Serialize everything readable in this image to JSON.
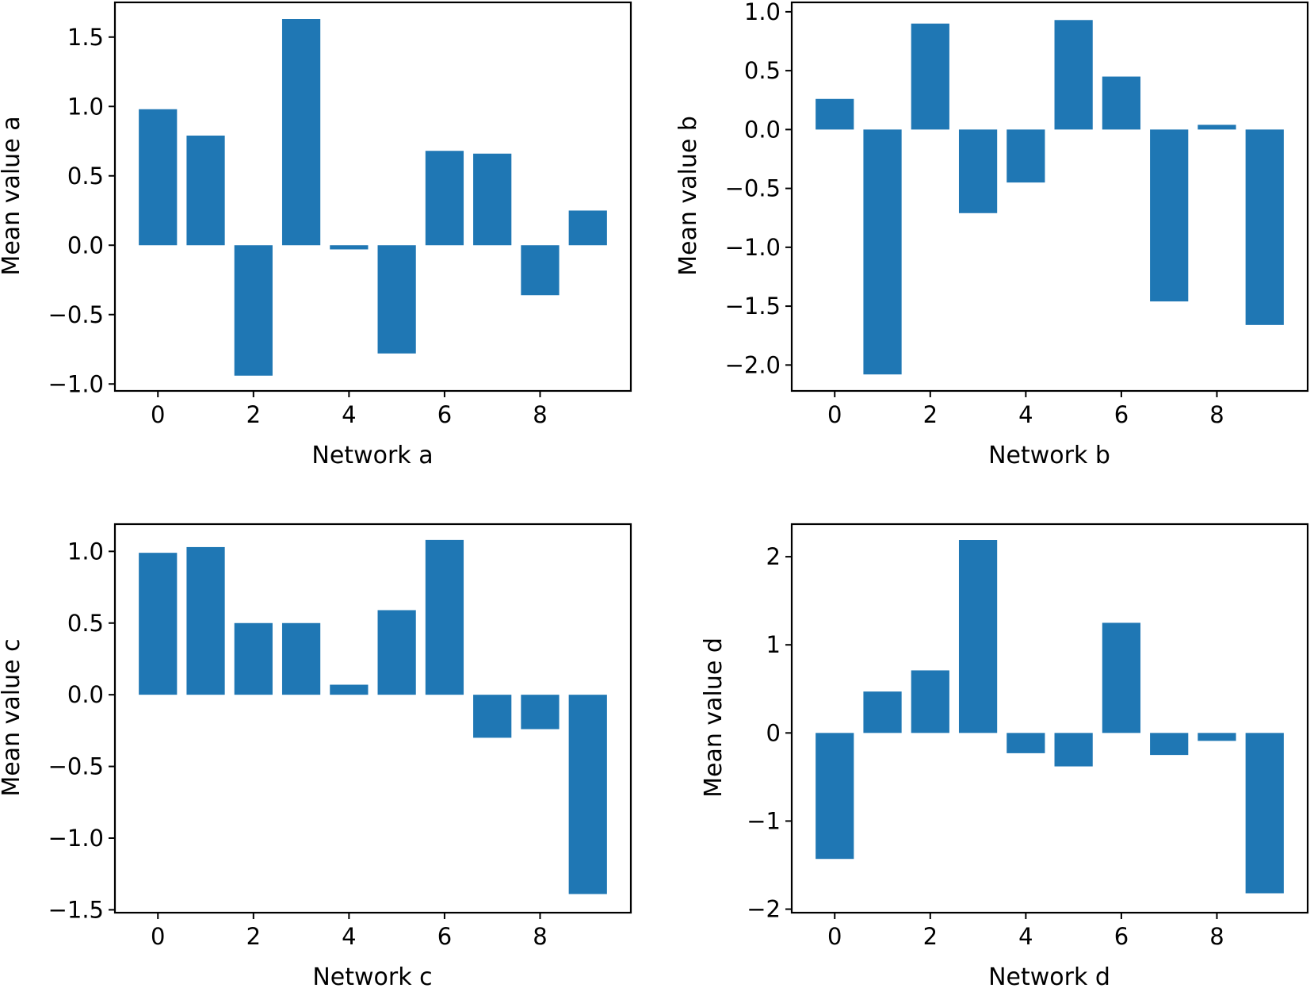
{
  "chart_data": [
    {
      "type": "bar",
      "title": "",
      "xlabel": "Network a",
      "ylabel": "Mean value a",
      "categories": [
        0,
        1,
        2,
        3,
        4,
        5,
        6,
        7,
        8,
        9
      ],
      "values": [
        0.98,
        0.79,
        -0.94,
        1.63,
        -0.03,
        -0.78,
        0.68,
        0.66,
        -0.36,
        0.25
      ],
      "xlim": [
        -0.9,
        9.9
      ],
      "ylim": [
        -1.05,
        1.75
      ],
      "xticks": [
        0,
        2,
        4,
        6,
        8
      ],
      "xtick_labels": [
        "0",
        "2",
        "4",
        "6",
        "8"
      ],
      "yticks": [
        -1.0,
        -0.5,
        0.0,
        0.5,
        1.0,
        1.5
      ],
      "ytick_labels": [
        "−1.0",
        "−0.5",
        "0.0",
        "0.5",
        "1.0",
        "1.5"
      ],
      "color": "#1f77b4",
      "grid": false
    },
    {
      "type": "bar",
      "title": "",
      "xlabel": "Network b",
      "ylabel": "Mean value b",
      "categories": [
        0,
        1,
        2,
        3,
        4,
        5,
        6,
        7,
        8,
        9
      ],
      "values": [
        0.26,
        -2.08,
        0.9,
        -0.71,
        -0.45,
        0.93,
        0.45,
        -1.46,
        0.04,
        -1.66
      ],
      "xlim": [
        -0.9,
        9.9
      ],
      "ylim": [
        -2.22,
        1.08
      ],
      "xticks": [
        0,
        2,
        4,
        6,
        8
      ],
      "xtick_labels": [
        "0",
        "2",
        "4",
        "6",
        "8"
      ],
      "yticks": [
        -2.0,
        -1.5,
        -1.0,
        -0.5,
        0.0,
        0.5,
        1.0
      ],
      "ytick_labels": [
        "−2.0",
        "−1.5",
        "−1.0",
        "−0.5",
        "0.0",
        "0.5",
        "1.0"
      ],
      "color": "#1f77b4",
      "grid": false
    },
    {
      "type": "bar",
      "title": "",
      "xlabel": "Network c",
      "ylabel": "Mean value c",
      "categories": [
        0,
        1,
        2,
        3,
        4,
        5,
        6,
        7,
        8,
        9
      ],
      "values": [
        0.99,
        1.03,
        0.5,
        0.5,
        0.07,
        0.59,
        1.08,
        -0.3,
        -0.24,
        -1.39
      ],
      "xlim": [
        -0.9,
        9.9
      ],
      "ylim": [
        -1.52,
        1.19
      ],
      "xticks": [
        0,
        2,
        4,
        6,
        8
      ],
      "xtick_labels": [
        "0",
        "2",
        "4",
        "6",
        "8"
      ],
      "yticks": [
        -1.5,
        -1.0,
        -0.5,
        0.0,
        0.5,
        1.0
      ],
      "ytick_labels": [
        "−1.5",
        "−1.0",
        "−0.5",
        "0.0",
        "0.5",
        "1.0"
      ],
      "color": "#1f77b4",
      "grid": false
    },
    {
      "type": "bar",
      "title": "",
      "xlabel": "Network d",
      "ylabel": "Mean value d",
      "categories": [
        0,
        1,
        2,
        3,
        4,
        5,
        6,
        7,
        8,
        9
      ],
      "values": [
        -1.43,
        0.47,
        0.71,
        2.19,
        -0.23,
        -0.38,
        1.25,
        -0.25,
        -0.09,
        -1.82
      ],
      "xlim": [
        -0.9,
        9.9
      ],
      "ylim": [
        -2.04,
        2.37
      ],
      "xticks": [
        0,
        2,
        4,
        6,
        8
      ],
      "xtick_labels": [
        "0",
        "2",
        "4",
        "6",
        "8"
      ],
      "yticks": [
        -2,
        -1,
        0,
        1,
        2
      ],
      "ytick_labels": [
        "−2",
        "−1",
        "0",
        "1",
        "2"
      ],
      "color": "#1f77b4",
      "grid": false
    }
  ]
}
